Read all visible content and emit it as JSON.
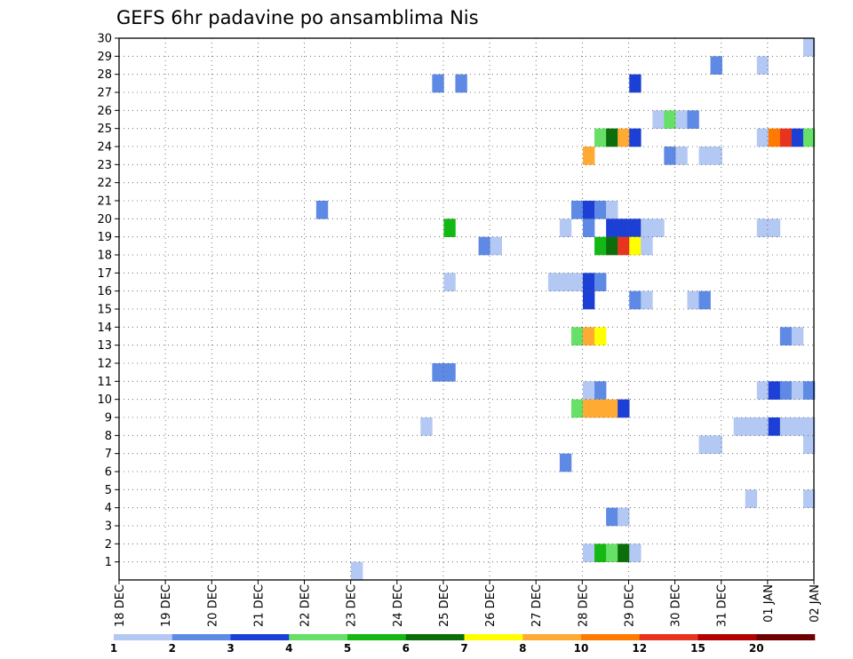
{
  "chart_data": {
    "type": "heatmap",
    "title": "GEFS 6hr padavine po ansamblima Nis",
    "xlabel": "",
    "ylabel": "",
    "x_tick_labels": [
      "18 DEC",
      "19 DEC",
      "20 DEC",
      "21 DEC",
      "22 DEC",
      "23 DEC",
      "24 DEC",
      "25 DEC",
      "26 DEC",
      "27 DEC",
      "28 DEC",
      "29 DEC",
      "30 DEC",
      "31 DEC",
      "01 JAN",
      "02 JAN"
    ],
    "y_tick_labels": [
      "1",
      "2",
      "3",
      "4",
      "5",
      "6",
      "7",
      "8",
      "9",
      "10",
      "11",
      "12",
      "13",
      "14",
      "15",
      "16",
      "17",
      "18",
      "19",
      "20",
      "21",
      "22",
      "23",
      "24",
      "25",
      "26",
      "27",
      "28",
      "29",
      "30"
    ],
    "xlim_days": [
      0,
      15
    ],
    "ylim": [
      0,
      30
    ],
    "grid": true,
    "color_levels": [
      1,
      2,
      3,
      4,
      5,
      6,
      7,
      8,
      10,
      12,
      15,
      20
    ],
    "colorbar_tick_labels": [
      "1",
      "2",
      "3",
      "4",
      "5",
      "6",
      "7",
      "8",
      "10",
      "12",
      "15",
      "20"
    ],
    "colorbar_colors": [
      "#b3c8f2",
      "#5e8ae6",
      "#1c3fd6",
      "#66e066",
      "#14b814",
      "#0a6e0a",
      "#ffff00",
      "#ffaa33",
      "#ff7a00",
      "#e8341e",
      "#b30000",
      "#6e0000"
    ],
    "cells": [
      {
        "m": 30,
        "t": 59,
        "c": 0
      },
      {
        "m": 29,
        "t": 51,
        "c": 1
      },
      {
        "m": 29,
        "t": 55,
        "c": 0
      },
      {
        "m": 28,
        "t": 27,
        "c": 1
      },
      {
        "m": 28,
        "t": 29,
        "c": 1
      },
      {
        "m": 28,
        "t": 44,
        "c": 2
      },
      {
        "m": 26,
        "t": 46,
        "c": 0
      },
      {
        "m": 26,
        "t": 47,
        "c": 3
      },
      {
        "m": 26,
        "t": 48,
        "c": 0
      },
      {
        "m": 26,
        "t": 49,
        "c": 1
      },
      {
        "m": 25,
        "t": 41,
        "c": 3
      },
      {
        "m": 25,
        "t": 42,
        "c": 5
      },
      {
        "m": 25,
        "t": 43,
        "c": 7
      },
      {
        "m": 25,
        "t": 44,
        "c": 2
      },
      {
        "m": 25,
        "t": 55,
        "c": 0
      },
      {
        "m": 25,
        "t": 56,
        "c": 8
      },
      {
        "m": 25,
        "t": 57,
        "c": 9
      },
      {
        "m": 25,
        "t": 58,
        "c": 2
      },
      {
        "m": 25,
        "t": 59,
        "c": 3
      },
      {
        "m": 24,
        "t": 40,
        "c": 7
      },
      {
        "m": 24,
        "t": 47,
        "c": 1
      },
      {
        "m": 24,
        "t": 48,
        "c": 0
      },
      {
        "m": 24,
        "t": 50,
        "c": 0
      },
      {
        "m": 24,
        "t": 51,
        "c": 0
      },
      {
        "m": 21,
        "t": 17,
        "c": 1
      },
      {
        "m": 21,
        "t": 39,
        "c": 1
      },
      {
        "m": 21,
        "t": 40,
        "c": 2
      },
      {
        "m": 21,
        "t": 41,
        "c": 1
      },
      {
        "m": 21,
        "t": 42,
        "c": 0
      },
      {
        "m": 20,
        "t": 28,
        "c": 4
      },
      {
        "m": 20,
        "t": 38,
        "c": 0
      },
      {
        "m": 20,
        "t": 40,
        "c": 1
      },
      {
        "m": 20,
        "t": 42,
        "c": 2
      },
      {
        "m": 20,
        "t": 43,
        "c": 2
      },
      {
        "m": 20,
        "t": 44,
        "c": 2
      },
      {
        "m": 20,
        "t": 45,
        "c": 0
      },
      {
        "m": 20,
        "t": 46,
        "c": 0
      },
      {
        "m": 20,
        "t": 55,
        "c": 0
      },
      {
        "m": 20,
        "t": 56,
        "c": 0
      },
      {
        "m": 19,
        "t": 31,
        "c": 1
      },
      {
        "m": 19,
        "t": 32,
        "c": 0
      },
      {
        "m": 19,
        "t": 41,
        "c": 4
      },
      {
        "m": 19,
        "t": 42,
        "c": 5
      },
      {
        "m": 19,
        "t": 43,
        "c": 9
      },
      {
        "m": 19,
        "t": 44,
        "c": 6
      },
      {
        "m": 19,
        "t": 45,
        "c": 0
      },
      {
        "m": 17,
        "t": 28,
        "c": 0
      },
      {
        "m": 17,
        "t": 37,
        "c": 0
      },
      {
        "m": 17,
        "t": 38,
        "c": 0
      },
      {
        "m": 17,
        "t": 39,
        "c": 0
      },
      {
        "m": 17,
        "t": 40,
        "c": 2
      },
      {
        "m": 17,
        "t": 41,
        "c": 1
      },
      {
        "m": 16,
        "t": 40,
        "c": 2
      },
      {
        "m": 16,
        "t": 44,
        "c": 1
      },
      {
        "m": 16,
        "t": 45,
        "c": 0
      },
      {
        "m": 16,
        "t": 49,
        "c": 0
      },
      {
        "m": 16,
        "t": 50,
        "c": 1
      },
      {
        "m": 14,
        "t": 39,
        "c": 3
      },
      {
        "m": 14,
        "t": 40,
        "c": 7
      },
      {
        "m": 14,
        "t": 41,
        "c": 6
      },
      {
        "m": 14,
        "t": 57,
        "c": 1
      },
      {
        "m": 14,
        "t": 58,
        "c": 0
      },
      {
        "m": 12,
        "t": 27,
        "c": 1
      },
      {
        "m": 12,
        "t": 28,
        "c": 1
      },
      {
        "m": 11,
        "t": 40,
        "c": 0
      },
      {
        "m": 11,
        "t": 41,
        "c": 1
      },
      {
        "m": 11,
        "t": 55,
        "c": 0
      },
      {
        "m": 11,
        "t": 56,
        "c": 2
      },
      {
        "m": 11,
        "t": 57,
        "c": 1
      },
      {
        "m": 11,
        "t": 58,
        "c": 0
      },
      {
        "m": 11,
        "t": 59,
        "c": 1
      },
      {
        "m": 10,
        "t": 39,
        "c": 3
      },
      {
        "m": 10,
        "t": 40,
        "c": 7
      },
      {
        "m": 10,
        "t": 41,
        "c": 7
      },
      {
        "m": 10,
        "t": 42,
        "c": 7
      },
      {
        "m": 10,
        "t": 43,
        "c": 2
      },
      {
        "m": 9,
        "t": 26,
        "c": 0
      },
      {
        "m": 9,
        "t": 53,
        "c": 0
      },
      {
        "m": 9,
        "t": 54,
        "c": 0
      },
      {
        "m": 9,
        "t": 55,
        "c": 0
      },
      {
        "m": 9,
        "t": 56,
        "c": 2
      },
      {
        "m": 9,
        "t": 57,
        "c": 0
      },
      {
        "m": 9,
        "t": 58,
        "c": 0
      },
      {
        "m": 9,
        "t": 59,
        "c": 0
      },
      {
        "m": 8,
        "t": 50,
        "c": 0
      },
      {
        "m": 8,
        "t": 51,
        "c": 0
      },
      {
        "m": 8,
        "t": 59,
        "c": 0
      },
      {
        "m": 7,
        "t": 38,
        "c": 1
      },
      {
        "m": 5,
        "t": 54,
        "c": 0
      },
      {
        "m": 5,
        "t": 59,
        "c": 0
      },
      {
        "m": 4,
        "t": 42,
        "c": 1
      },
      {
        "m": 4,
        "t": 43,
        "c": 0
      },
      {
        "m": 2,
        "t": 40,
        "c": 0
      },
      {
        "m": 2,
        "t": 41,
        "c": 4
      },
      {
        "m": 2,
        "t": 42,
        "c": 3
      },
      {
        "m": 2,
        "t": 43,
        "c": 5
      },
      {
        "m": 2,
        "t": 44,
        "c": 0
      },
      {
        "m": 1,
        "t": 20,
        "c": 0
      }
    ]
  }
}
